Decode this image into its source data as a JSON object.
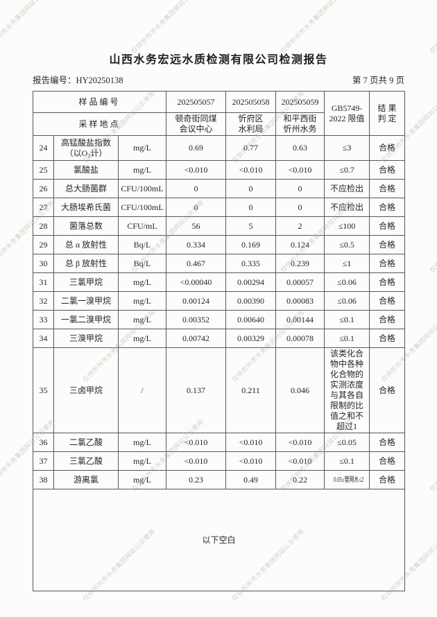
{
  "watermark": {
    "text": "仅供忻州市水务集团网站公示使用"
  },
  "header": {
    "title": "山西水务宏远水质检测有限公司检测报告",
    "report_no": "报告编号：HY20250138",
    "page_info": "第 7 页共 9 页"
  },
  "table": {
    "sample_id_label": "样品编号",
    "location_label": "采样地点",
    "sample_ids": [
      "202505057",
      "202505058",
      "202505059"
    ],
    "locations": [
      "顿奇街同煤\n会议中心",
      "忻府区\n水利局",
      "和平西街\n忻州水务"
    ],
    "limit_header": "GB5749-\n2022 限值",
    "result_header": "结 果\n判 定",
    "rows": [
      {
        "no": "24",
        "name": "高锰酸盐指数\n（以O₂计）",
        "unit": "mg/L",
        "v1": "0.69",
        "v2": "0.77",
        "v3": "0.63",
        "limit": "≤3",
        "result": "合格"
      },
      {
        "no": "25",
        "name": "氯酸盐",
        "unit": "mg/L",
        "v1": "<0.010",
        "v2": "<0.010",
        "v3": "<0.010",
        "limit": "≤0.7",
        "result": "合格"
      },
      {
        "no": "26",
        "name": "总大肠菌群",
        "unit": "CFU/100mL",
        "v1": "0",
        "v2": "0",
        "v3": "0",
        "limit": "不应检出",
        "result": "合格"
      },
      {
        "no": "27",
        "name": "大肠埃希氏菌",
        "unit": "CFU/100mL",
        "v1": "0",
        "v2": "0",
        "v3": "0",
        "limit": "不应检出",
        "result": "合格"
      },
      {
        "no": "28",
        "name": "菌落总数",
        "unit": "CFU/mL",
        "v1": "56",
        "v2": "5",
        "v3": "2",
        "limit": "≤100",
        "result": "合格"
      },
      {
        "no": "29",
        "name": "总 α 放射性",
        "unit": "Bq/L",
        "v1": "0.334",
        "v2": "0.169",
        "v3": "0.124",
        "limit": "≤0.5",
        "result": "合格"
      },
      {
        "no": "30",
        "name": "总 β 放射性",
        "unit": "Bq/L",
        "v1": "0.467",
        "v2": "0.335",
        "v3": "0.239",
        "limit": "≤1",
        "result": "合格"
      },
      {
        "no": "31",
        "name": "三氯甲烷",
        "unit": "mg/L",
        "v1": "<0.00040",
        "v2": "0.00294",
        "v3": "0.00057",
        "limit": "≤0.06",
        "result": "合格"
      },
      {
        "no": "32",
        "name": "二氯一溴甲烷",
        "unit": "mg/L",
        "v1": "0.00124",
        "v2": "0.00390",
        "v3": "0.00083",
        "limit": "≤0.06",
        "result": "合格"
      },
      {
        "no": "33",
        "name": "一氯二溴甲烷",
        "unit": "mg/L",
        "v1": "0.00352",
        "v2": "0.00640",
        "v3": "0.00144",
        "limit": "≤0.1",
        "result": "合格"
      },
      {
        "no": "34",
        "name": "三溴甲烷",
        "unit": "mg/L",
        "v1": "0.00742",
        "v2": "0.00329",
        "v3": "0.00078",
        "limit": "≤0.1",
        "result": "合格"
      },
      {
        "no": "35",
        "name": "三卤甲烷",
        "unit": "/",
        "v1": "0.137",
        "v2": "0.211",
        "v3": "0.046",
        "limit": "该类化合物中各种化合物的实测浓度与其各自限制的比值之和不超过1",
        "result": "合格"
      },
      {
        "no": "36",
        "name": "二氯乙酸",
        "unit": "mg/L",
        "v1": "<0.010",
        "v2": "<0.010",
        "v3": "<0.010",
        "limit": "≤0.05",
        "result": "合格"
      },
      {
        "no": "37",
        "name": "三氯乙酸",
        "unit": "mg/L",
        "v1": "<0.010",
        "v2": "<0.010",
        "v3": "<0.010",
        "limit": "≤0.1",
        "result": "合格"
      },
      {
        "no": "38",
        "name": "游离氯",
        "unit": "mg/L",
        "v1": "0.23",
        "v2": "0.49",
        "v3": "0.22",
        "limit": "0.05≤管网水≤2",
        "result": "合格"
      }
    ],
    "footer_note": "以下空白"
  }
}
